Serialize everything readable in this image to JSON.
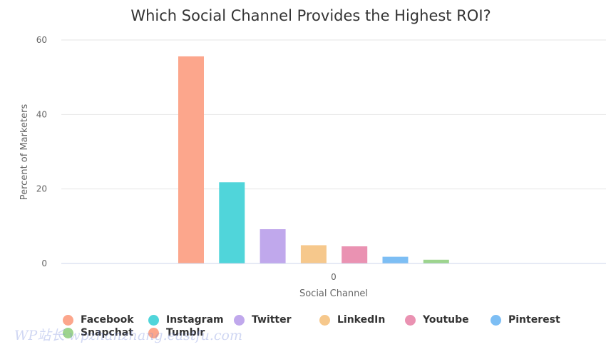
{
  "chart_data": {
    "type": "bar",
    "title": "Which Social Channel Provides the Highest ROI?",
    "xlabel": "Social Channel",
    "ylabel": "Percent of Marketers",
    "categories": [
      "0"
    ],
    "ylim": [
      0,
      60
    ],
    "yticks": [
      0,
      20,
      40,
      60
    ],
    "grid": true,
    "legend_position": "bottom",
    "series": [
      {
        "name": "Facebook",
        "values": [
          55.6
        ],
        "color": "#fca68c"
      },
      {
        "name": "Instagram",
        "values": [
          21.8
        ],
        "color": "#50d5da"
      },
      {
        "name": "Twitter",
        "values": [
          9.2
        ],
        "color": "#c0a8ec"
      },
      {
        "name": "LinkedIn",
        "values": [
          4.9
        ],
        "color": "#f6c88c"
      },
      {
        "name": "Youtube",
        "values": [
          4.6
        ],
        "color": "#ea92b2"
      },
      {
        "name": "Pinterest",
        "values": [
          1.8
        ],
        "color": "#7dbef4"
      },
      {
        "name": "Snapchat",
        "values": [
          1.0
        ],
        "color": "#9dd48e"
      },
      {
        "name": "Tumblr",
        "values": [
          0
        ],
        "color": "#fca68c"
      }
    ]
  },
  "watermark": "WP站长 wpzhanzhang.eastfu.com"
}
